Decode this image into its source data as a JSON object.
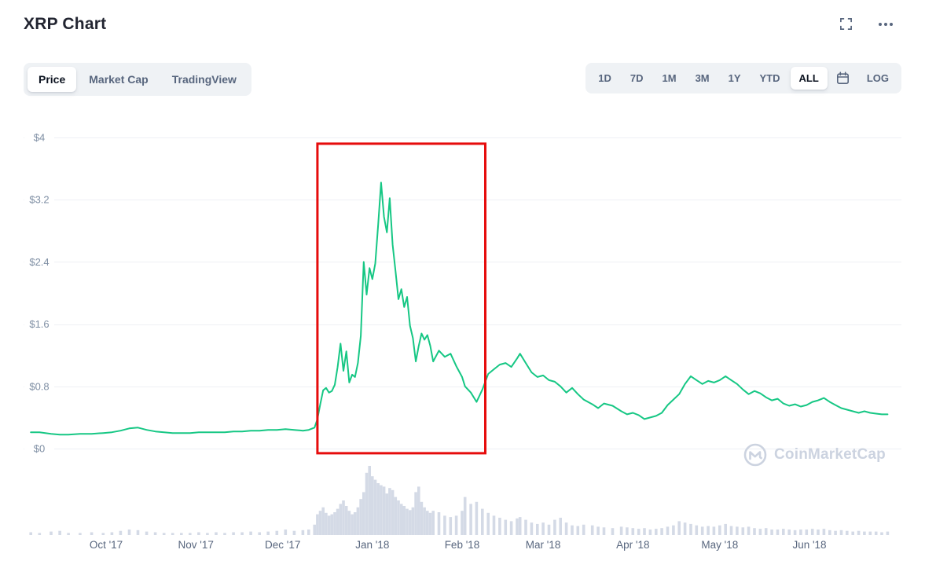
{
  "header": {
    "title": "XRP Chart",
    "icons": {
      "fullscreen": "fullscreen-icon",
      "more": "ellipsis-icon"
    }
  },
  "toolbar": {
    "tabs": [
      {
        "label": "Price",
        "active": true
      },
      {
        "label": "Market Cap",
        "active": false
      },
      {
        "label": "TradingView",
        "active": false
      }
    ],
    "ranges": [
      {
        "label": "1D",
        "active": false
      },
      {
        "label": "7D",
        "active": false
      },
      {
        "label": "1M",
        "active": false
      },
      {
        "label": "3M",
        "active": false
      },
      {
        "label": "1Y",
        "active": false
      },
      {
        "label": "YTD",
        "active": false
      },
      {
        "label": "ALL",
        "active": true
      }
    ],
    "calendar_icon": "calendar-icon",
    "log_label": "LOG"
  },
  "watermark": {
    "label": "CoinMarketCap",
    "logo_icon": "coinmarketcap-logo-icon"
  },
  "chart_data": {
    "type": "line",
    "title": "XRP Chart",
    "xlabel": "",
    "ylabel": "",
    "ylim": [
      0,
      4
    ],
    "grid": "horizontal",
    "legend": "none",
    "line_color": "#16c784",
    "volume_color": "#d4dae6",
    "grid_color": "#eef0f5",
    "ytick_color": "#7f8fa4",
    "xtick_color": "#58667e",
    "yticks": [
      {
        "label": "$0",
        "value": 0
      },
      {
        "label": "$0.8",
        "value": 0.8
      },
      {
        "label": "$1.6",
        "value": 1.6
      },
      {
        "label": "$2.4",
        "value": 2.4
      },
      {
        "label": "$3.2",
        "value": 3.2
      },
      {
        "label": "$4",
        "value": 4
      }
    ],
    "xticks": [
      {
        "label": "Oct '17",
        "date": "2017-10-01"
      },
      {
        "label": "Nov '17",
        "date": "2017-11-01"
      },
      {
        "label": "Dec '17",
        "date": "2017-12-01"
      },
      {
        "label": "Jan '18",
        "date": "2018-01-01"
      },
      {
        "label": "Feb '18",
        "date": "2018-02-01"
      },
      {
        "label": "Mar '18",
        "date": "2018-03-01"
      },
      {
        "label": "Apr '18",
        "date": "2018-04-01"
      },
      {
        "label": "May '18",
        "date": "2018-05-01"
      },
      {
        "label": "Jun '18",
        "date": "2018-06-01"
      }
    ],
    "annotation": {
      "type": "rect",
      "color": "#e60c0c",
      "date_start": "2017-12-13",
      "date_end": "2018-02-09",
      "price_bottom": -0.06,
      "price_top": 3.92
    },
    "series": [
      {
        "name": "XRP Price (USD)",
        "point_format": [
          "date",
          "price_usd",
          "volume_relative_0_to_1"
        ],
        "points": [
          [
            "2017-09-05",
            0.21,
            0.04
          ],
          [
            "2017-09-08",
            0.21,
            0.03
          ],
          [
            "2017-09-12",
            0.19,
            0.05
          ],
          [
            "2017-09-15",
            0.18,
            0.06
          ],
          [
            "2017-09-18",
            0.18,
            0.03
          ],
          [
            "2017-09-22",
            0.19,
            0.03
          ],
          [
            "2017-09-26",
            0.19,
            0.04
          ],
          [
            "2017-09-30",
            0.2,
            0.03
          ],
          [
            "2017-10-03",
            0.21,
            0.04
          ],
          [
            "2017-10-06",
            0.23,
            0.06
          ],
          [
            "2017-10-09",
            0.26,
            0.08
          ],
          [
            "2017-10-12",
            0.27,
            0.07
          ],
          [
            "2017-10-15",
            0.24,
            0.05
          ],
          [
            "2017-10-18",
            0.22,
            0.04
          ],
          [
            "2017-10-21",
            0.21,
            0.03
          ],
          [
            "2017-10-24",
            0.2,
            0.03
          ],
          [
            "2017-10-27",
            0.2,
            0.03
          ],
          [
            "2017-10-30",
            0.2,
            0.03
          ],
          [
            "2017-11-02",
            0.21,
            0.04
          ],
          [
            "2017-11-05",
            0.21,
            0.03
          ],
          [
            "2017-11-08",
            0.21,
            0.04
          ],
          [
            "2017-11-11",
            0.21,
            0.03
          ],
          [
            "2017-11-14",
            0.22,
            0.04
          ],
          [
            "2017-11-17",
            0.22,
            0.04
          ],
          [
            "2017-11-20",
            0.23,
            0.05
          ],
          [
            "2017-11-23",
            0.23,
            0.04
          ],
          [
            "2017-11-26",
            0.24,
            0.05
          ],
          [
            "2017-11-29",
            0.24,
            0.06
          ],
          [
            "2017-12-02",
            0.25,
            0.08
          ],
          [
            "2017-12-05",
            0.24,
            0.06
          ],
          [
            "2017-12-08",
            0.23,
            0.07
          ],
          [
            "2017-12-10",
            0.24,
            0.08
          ],
          [
            "2017-12-12",
            0.27,
            0.15
          ],
          [
            "2017-12-13",
            0.38,
            0.3
          ],
          [
            "2017-12-14",
            0.57,
            0.35
          ],
          [
            "2017-12-15",
            0.75,
            0.4
          ],
          [
            "2017-12-16",
            0.78,
            0.32
          ],
          [
            "2017-12-17",
            0.72,
            0.28
          ],
          [
            "2017-12-18",
            0.74,
            0.3
          ],
          [
            "2017-12-19",
            0.82,
            0.33
          ],
          [
            "2017-12-20",
            1.05,
            0.38
          ],
          [
            "2017-12-21",
            1.35,
            0.45
          ],
          [
            "2017-12-22",
            1.0,
            0.5
          ],
          [
            "2017-12-23",
            1.25,
            0.42
          ],
          [
            "2017-12-24",
            0.85,
            0.35
          ],
          [
            "2017-12-25",
            0.95,
            0.3
          ],
          [
            "2017-12-26",
            0.92,
            0.33
          ],
          [
            "2017-12-27",
            1.1,
            0.4
          ],
          [
            "2017-12-28",
            1.45,
            0.52
          ],
          [
            "2017-12-29",
            2.4,
            0.62
          ],
          [
            "2017-12-30",
            1.98,
            0.9
          ],
          [
            "2017-12-31",
            2.32,
            1.0
          ],
          [
            "2018-01-01",
            2.18,
            0.85
          ],
          [
            "2018-01-02",
            2.38,
            0.8
          ],
          [
            "2018-01-03",
            2.88,
            0.75
          ],
          [
            "2018-01-04",
            3.42,
            0.72
          ],
          [
            "2018-01-05",
            2.98,
            0.7
          ],
          [
            "2018-01-06",
            2.78,
            0.6
          ],
          [
            "2018-01-07",
            3.22,
            0.68
          ],
          [
            "2018-01-08",
            2.62,
            0.65
          ],
          [
            "2018-01-09",
            2.28,
            0.55
          ],
          [
            "2018-01-10",
            1.92,
            0.5
          ],
          [
            "2018-01-11",
            2.05,
            0.45
          ],
          [
            "2018-01-12",
            1.82,
            0.42
          ],
          [
            "2018-01-13",
            1.95,
            0.38
          ],
          [
            "2018-01-14",
            1.58,
            0.36
          ],
          [
            "2018-01-15",
            1.42,
            0.4
          ],
          [
            "2018-01-16",
            1.12,
            0.62
          ],
          [
            "2018-01-17",
            1.32,
            0.7
          ],
          [
            "2018-01-18",
            1.48,
            0.48
          ],
          [
            "2018-01-19",
            1.4,
            0.4
          ],
          [
            "2018-01-20",
            1.46,
            0.35
          ],
          [
            "2018-01-21",
            1.32,
            0.32
          ],
          [
            "2018-01-22",
            1.12,
            0.35
          ],
          [
            "2018-01-24",
            1.26,
            0.33
          ],
          [
            "2018-01-26",
            1.18,
            0.28
          ],
          [
            "2018-01-28",
            1.22,
            0.26
          ],
          [
            "2018-01-30",
            1.06,
            0.28
          ],
          [
            "2018-02-01",
            0.92,
            0.35
          ],
          [
            "2018-02-02",
            0.8,
            0.55
          ],
          [
            "2018-02-04",
            0.72,
            0.45
          ],
          [
            "2018-02-06",
            0.6,
            0.48
          ],
          [
            "2018-02-08",
            0.76,
            0.38
          ],
          [
            "2018-02-10",
            0.96,
            0.32
          ],
          [
            "2018-02-12",
            1.02,
            0.28
          ],
          [
            "2018-02-14",
            1.08,
            0.25
          ],
          [
            "2018-02-16",
            1.1,
            0.22
          ],
          [
            "2018-02-18",
            1.05,
            0.2
          ],
          [
            "2018-02-20",
            1.16,
            0.24
          ],
          [
            "2018-02-21",
            1.22,
            0.26
          ],
          [
            "2018-02-23",
            1.1,
            0.22
          ],
          [
            "2018-02-25",
            0.98,
            0.18
          ],
          [
            "2018-02-27",
            0.92,
            0.16
          ],
          [
            "2018-03-01",
            0.94,
            0.18
          ],
          [
            "2018-03-03",
            0.88,
            0.15
          ],
          [
            "2018-03-05",
            0.86,
            0.22
          ],
          [
            "2018-03-07",
            0.8,
            0.25
          ],
          [
            "2018-03-09",
            0.72,
            0.18
          ],
          [
            "2018-03-11",
            0.78,
            0.14
          ],
          [
            "2018-03-13",
            0.7,
            0.13
          ],
          [
            "2018-03-15",
            0.63,
            0.15
          ],
          [
            "2018-03-18",
            0.57,
            0.14
          ],
          [
            "2018-03-20",
            0.52,
            0.12
          ],
          [
            "2018-03-22",
            0.58,
            0.11
          ],
          [
            "2018-03-25",
            0.55,
            0.1
          ],
          [
            "2018-03-28",
            0.48,
            0.12
          ],
          [
            "2018-03-30",
            0.44,
            0.11
          ],
          [
            "2018-04-01",
            0.46,
            0.1
          ],
          [
            "2018-04-03",
            0.43,
            0.09
          ],
          [
            "2018-04-05",
            0.38,
            0.1
          ],
          [
            "2018-04-07",
            0.4,
            0.08
          ],
          [
            "2018-04-09",
            0.42,
            0.09
          ],
          [
            "2018-04-11",
            0.46,
            0.1
          ],
          [
            "2018-04-13",
            0.56,
            0.12
          ],
          [
            "2018-04-15",
            0.63,
            0.14
          ],
          [
            "2018-04-17",
            0.7,
            0.2
          ],
          [
            "2018-04-19",
            0.83,
            0.18
          ],
          [
            "2018-04-21",
            0.93,
            0.16
          ],
          [
            "2018-04-23",
            0.88,
            0.14
          ],
          [
            "2018-04-25",
            0.83,
            0.12
          ],
          [
            "2018-04-27",
            0.87,
            0.13
          ],
          [
            "2018-04-29",
            0.85,
            0.12
          ],
          [
            "2018-05-01",
            0.88,
            0.14
          ],
          [
            "2018-05-03",
            0.93,
            0.16
          ],
          [
            "2018-05-05",
            0.88,
            0.13
          ],
          [
            "2018-05-07",
            0.83,
            0.12
          ],
          [
            "2018-05-09",
            0.76,
            0.11
          ],
          [
            "2018-05-11",
            0.7,
            0.12
          ],
          [
            "2018-05-13",
            0.74,
            0.1
          ],
          [
            "2018-05-15",
            0.71,
            0.09
          ],
          [
            "2018-05-17",
            0.66,
            0.1
          ],
          [
            "2018-05-19",
            0.62,
            0.08
          ],
          [
            "2018-05-21",
            0.64,
            0.08
          ],
          [
            "2018-05-23",
            0.58,
            0.09
          ],
          [
            "2018-05-25",
            0.55,
            0.08
          ],
          [
            "2018-05-27",
            0.57,
            0.07
          ],
          [
            "2018-05-29",
            0.54,
            0.08
          ],
          [
            "2018-05-31",
            0.56,
            0.08
          ],
          [
            "2018-06-02",
            0.6,
            0.09
          ],
          [
            "2018-06-04",
            0.62,
            0.08
          ],
          [
            "2018-06-06",
            0.65,
            0.09
          ],
          [
            "2018-06-08",
            0.6,
            0.07
          ],
          [
            "2018-06-10",
            0.56,
            0.06
          ],
          [
            "2018-06-12",
            0.52,
            0.07
          ],
          [
            "2018-06-14",
            0.5,
            0.06
          ],
          [
            "2018-06-16",
            0.48,
            0.05
          ],
          [
            "2018-06-18",
            0.46,
            0.06
          ],
          [
            "2018-06-20",
            0.48,
            0.05
          ],
          [
            "2018-06-22",
            0.46,
            0.05
          ],
          [
            "2018-06-24",
            0.45,
            0.05
          ],
          [
            "2018-06-26",
            0.44,
            0.04
          ],
          [
            "2018-06-28",
            0.44,
            0.05
          ]
        ]
      }
    ]
  }
}
